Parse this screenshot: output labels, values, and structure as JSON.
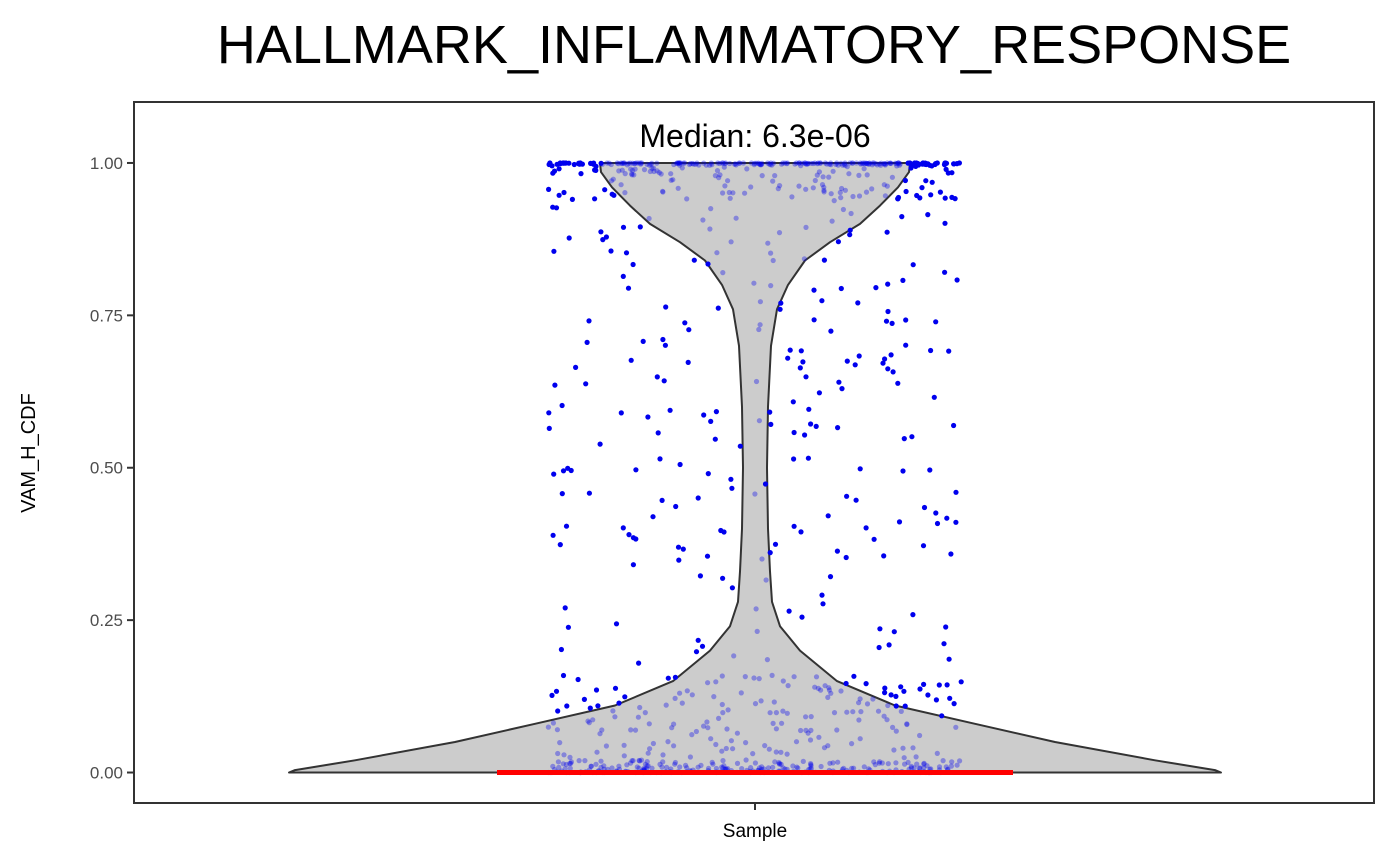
{
  "chart_data": {
    "type": "violin",
    "title": "HALLMARK_INFLAMMATORY_RESPONSE",
    "xlabel": "",
    "ylabel": "VAM_H_CDF",
    "categories": [
      "Sample"
    ],
    "ylim": [
      -0.05,
      1.1
    ],
    "yticks": [
      "0.00",
      "0.25",
      "0.50",
      "0.75",
      "1.00"
    ],
    "annotation": "Median: 6.3e-06",
    "median": 6.3e-06,
    "grid": false,
    "legend": "none",
    "colors": {
      "violin_fill": "#cccccc",
      "violin_outline": "#333333",
      "points": "#0000ee",
      "median_line": "#ff0000"
    }
  }
}
